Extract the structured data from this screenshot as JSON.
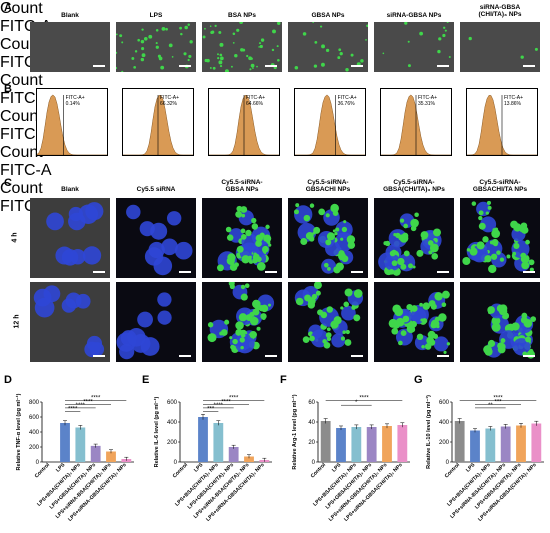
{
  "panel_letters": {
    "a": "A",
    "b": "B",
    "c": "C",
    "d": "D",
    "e": "E",
    "f": "F",
    "g": "G"
  },
  "row_a": {
    "titles": [
      "Blank",
      "LPS",
      "BSA NPs",
      "GBSA NPs",
      "siRNA-GBSA NPs",
      "siRNA-GBSA\n(CHI/TA)₃ NPs"
    ],
    "dot_density": [
      0,
      0.6,
      0.75,
      0.3,
      0.2,
      0.05
    ]
  },
  "row_b": {
    "ylabel": "Count",
    "xlabel": "FITC-A",
    "gate_name": "FITC-A+",
    "gates": [
      "0.14%",
      "66.32%",
      "64.66%",
      "36.76%",
      "35.31%",
      "13.86%"
    ]
  },
  "row_c": {
    "titles": [
      "Blank",
      "Cy5.5 siRNA",
      "Cy5.5-siRNA-\nGBSA NPs",
      "Cy5.5-siRNA-\nGBSACHI NPs",
      "Cy5.5-siRNA-\nGBSA(CHI/TA)₃ NPs",
      "Cy5.5-siRNA-\nGBSACHI/TA NPs"
    ],
    "rows": [
      "4 h",
      "12 h"
    ],
    "green_amount": [
      0,
      0,
      0.8,
      0.6,
      0.8,
      0.9
    ]
  },
  "chart_data": [
    {
      "type": "bar",
      "panel": "D",
      "categories": [
        "Control",
        "LPS",
        "LPS+BSA(CHI/TA)₃ NPs",
        "LPS+GBSA(CHI/TA)₃ NPs",
        "LPS+siRNA-BSA(CHI/TA)₃ NPs",
        "LPS+siRNA-GBSA(CHI/TA)₃ NPs"
      ],
      "values": [
        0,
        520,
        460,
        215,
        140,
        40
      ],
      "ylabel": "Relative TNF-α level (pg ml⁻¹)",
      "ylim": [
        0,
        800
      ],
      "yticks": [
        0,
        200,
        400,
        600,
        800
      ],
      "significance": [
        "****",
        "****",
        "****",
        "****"
      ]
    },
    {
      "type": "bar",
      "panel": "E",
      "categories": [
        "Control",
        "LPS",
        "LPS+BSA(CHI/TA)₃ NPs",
        "LPS+GBSA(CHI/TA)₃ NPs",
        "LPS+siRNA-BSA(CHI/TA)₃ NPs",
        "LPS+siRNA-GBSA(CHI/TA)₃ NPs"
      ],
      "values": [
        0,
        450,
        390,
        150,
        55,
        20
      ],
      "ylabel": "Relative IL-6 level (pg ml⁻¹)",
      "ylim": [
        0,
        600
      ],
      "yticks": [
        0,
        200,
        400,
        600
      ],
      "significance": [
        "****",
        "****",
        "****",
        "***"
      ]
    },
    {
      "type": "bar",
      "panel": "F",
      "categories": [
        "Control",
        "LPS",
        "LPS+BSA(CHI/TA)₃ NPs",
        "LPS+GBSA(CHI/TA)₃ NPs",
        "LPS+siRNA-GBSA(CHI/TA)₃ NPs",
        "LPS+siRNA-GBSA(CHI/TA)₃ NPs"
      ],
      "values": [
        41,
        34,
        35,
        35,
        36,
        37
      ],
      "ylabel": "Relative Arg-1 level (pg ml⁻¹)",
      "ylim": [
        0,
        60
      ],
      "yticks": [
        0,
        20,
        40,
        60
      ],
      "significance": [
        "****",
        "*"
      ]
    },
    {
      "type": "bar",
      "panel": "G",
      "categories": [
        "Control",
        "LPS",
        "LPS+BSA(CHI/TA)₃ NPs",
        "LPS+siRNA-BSA(CHI/TA)₃ NPs",
        "LPS+GBSA(CHI/TA)₃ NPs",
        "LPS+siRNA-GBSA(CHI/TA)₃ NPs"
      ],
      "values": [
        410,
        315,
        335,
        355,
        365,
        385
      ],
      "ylabel": "Relative IL-10 level (pg ml⁻¹)",
      "ylim": [
        0,
        600
      ],
      "yticks": [
        0,
        200,
        400,
        600
      ],
      "significance": [
        "****",
        "***",
        "**"
      ]
    }
  ],
  "colors": {
    "bars": [
      "#8c8c8c",
      "#5b83c9",
      "#85bfcf",
      "#9b86c4",
      "#f0a45b",
      "#ea90c8"
    ],
    "hist_fill": "#d99a55",
    "micro_bg": "#262626",
    "nuclei": "#2f46d6",
    "nps": "#3fd64a"
  }
}
